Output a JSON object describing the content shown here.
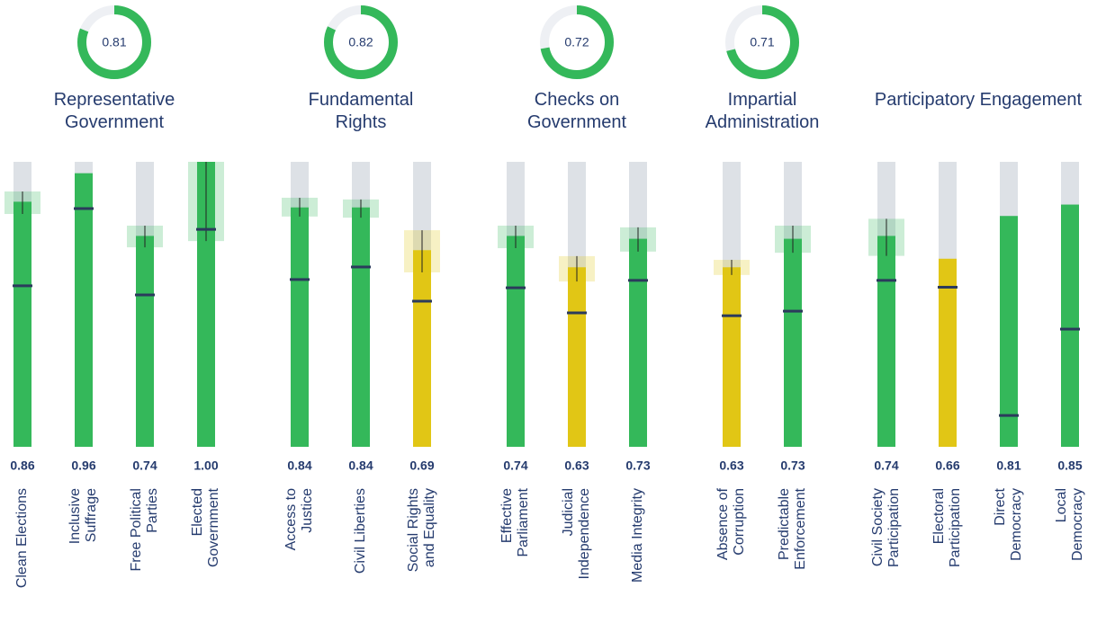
{
  "chart_data": {
    "type": "bar",
    "ylim": [
      0,
      1
    ],
    "groups": [
      {
        "title": "Representative\nGovernment",
        "score": 0.81,
        "categories": [
          "Clean Elections",
          "Inclusive\nSuffrage",
          "Free Political\nParties",
          "Elected\nGovernment"
        ],
        "values": [
          0.86,
          0.96,
          0.74,
          1.0
        ],
        "value_labels": [
          "0.86",
          "0.96",
          "0.74",
          "1.00"
        ],
        "averages": [
          0.565,
          0.836,
          0.533,
          0.763
        ],
        "ci_low": [
          0.817,
          null,
          0.7,
          0.722
        ],
        "ci_high": [
          0.896,
          null,
          0.776,
          1.0
        ],
        "colors": [
          "#34b85a",
          "#34b85a",
          "#34b85a",
          "#34b85a"
        ]
      },
      {
        "title": "Fundamental\nRights",
        "score": 0.82,
        "categories": [
          "Access to\nJustice",
          "Civil Liberties",
          "Social Rights\nand Equality"
        ],
        "values": [
          0.84,
          0.84,
          0.69
        ],
        "value_labels": [
          "0.84",
          "0.84",
          "0.69"
        ],
        "averages": [
          0.587,
          0.631,
          0.511
        ],
        "ci_low": [
          0.808,
          0.804,
          0.612
        ],
        "ci_high": [
          0.874,
          0.868,
          0.76
        ],
        "colors": [
          "#34b85a",
          "#34b85a",
          "#e1c615"
        ]
      },
      {
        "title": "Checks on\nGovernment",
        "score": 0.72,
        "categories": [
          "Effective\nParliament",
          "Judicial\nIndependence",
          "Media Integrity"
        ],
        "values": [
          0.74,
          0.63,
          0.73
        ],
        "value_labels": [
          "0.74",
          "0.63",
          "0.73"
        ],
        "averages": [
          0.558,
          0.47,
          0.584
        ],
        "ci_low": [
          0.697,
          0.58,
          0.685
        ],
        "ci_high": [
          0.776,
          0.669,
          0.77
        ],
        "colors": [
          "#34b85a",
          "#e1c615",
          "#34b85a"
        ]
      },
      {
        "title": "Impartial\nAdministration",
        "score": 0.71,
        "categories": [
          "Absence of\nCorruption",
          "Predictable\nEnforcement"
        ],
        "values": [
          0.63,
          0.73
        ],
        "value_labels": [
          "0.63",
          "0.73"
        ],
        "averages": [
          0.46,
          0.476
        ],
        "ci_low": [
          0.603,
          0.681
        ],
        "ci_high": [
          0.656,
          0.776
        ],
        "colors": [
          "#e1c615",
          "#34b85a"
        ]
      },
      {
        "title": "Participatory Engagement",
        "categories": [
          "Civil Society\nParticipation",
          "Electoral\nParticipation",
          "Direct\nDemocracy",
          "Local\nDemocracy"
        ],
        "values": [
          0.74,
          0.66,
          0.81,
          0.85
        ],
        "value_labels": [
          "0.74",
          "0.66",
          "0.81",
          "0.85"
        ],
        "averages": [
          0.584,
          0.56,
          0.11,
          0.413
        ],
        "ci_low": [
          0.67,
          null,
          null,
          null
        ],
        "ci_high": [
          0.8,
          null,
          null,
          null
        ],
        "colors": [
          "#34b85a",
          "#e1c615",
          "#34b85a",
          "#34b85a"
        ]
      }
    ]
  }
}
